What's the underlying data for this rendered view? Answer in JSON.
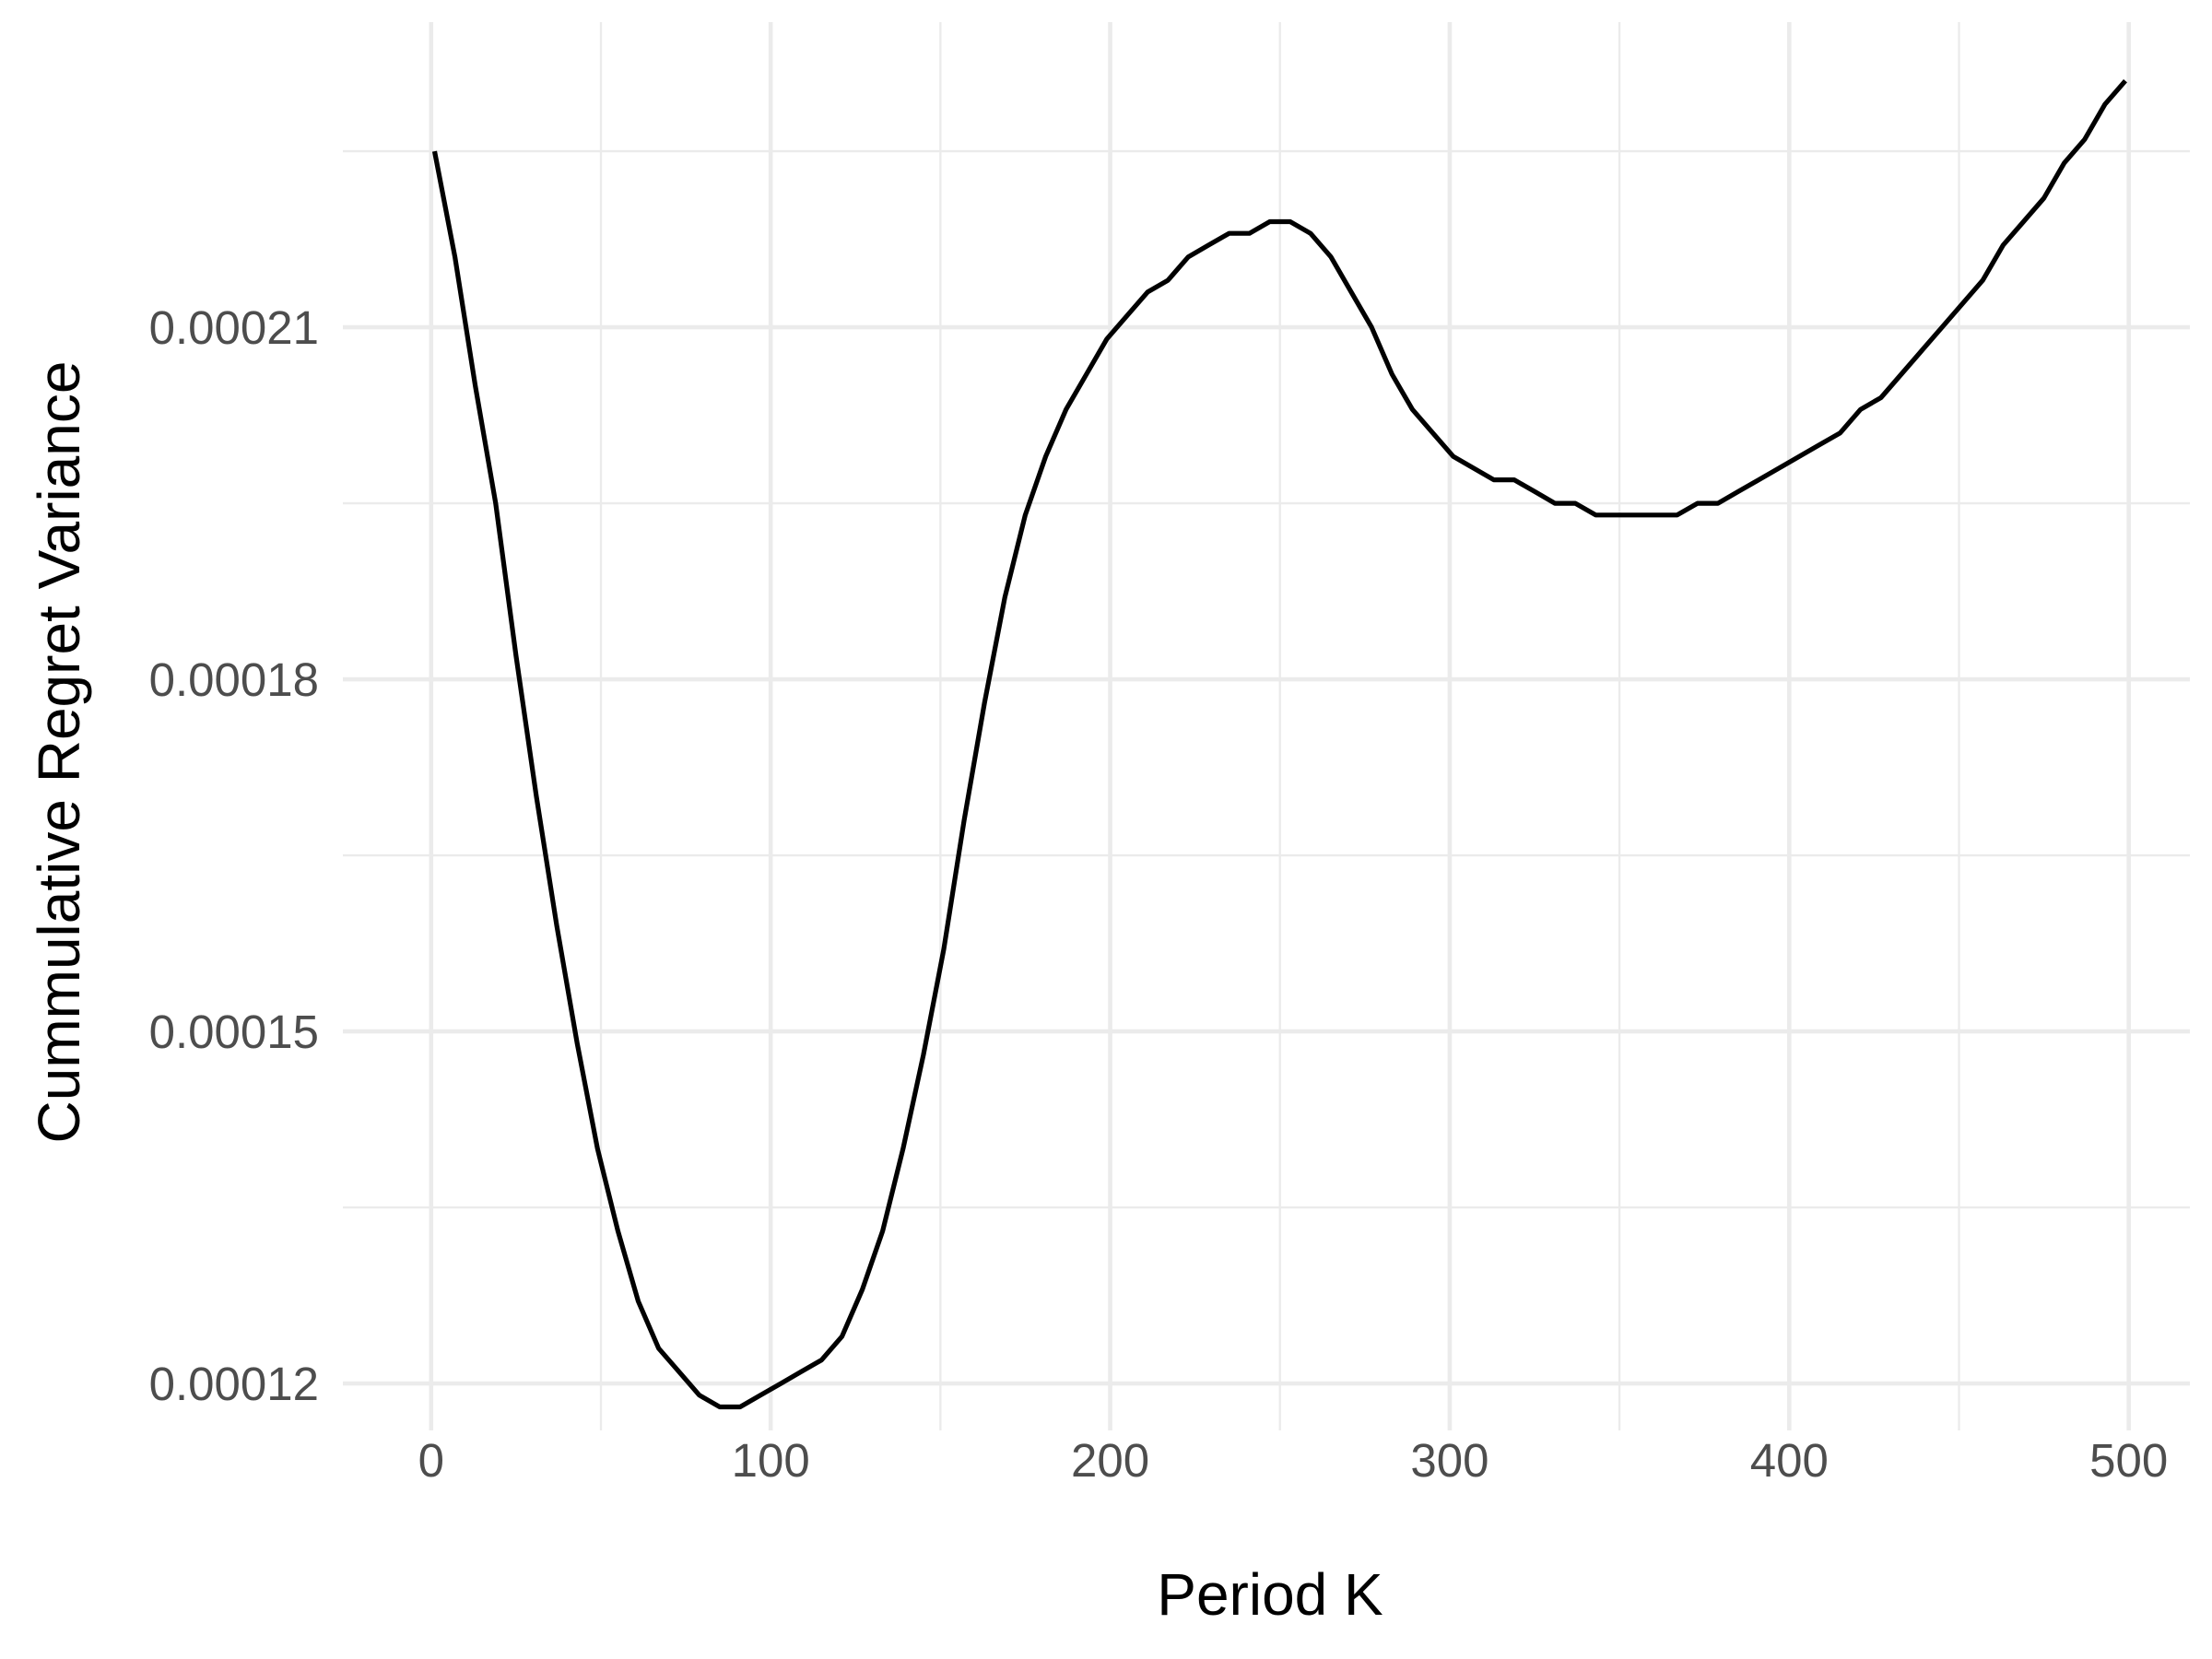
{
  "chart_data": {
    "type": "line",
    "title": "",
    "xlabel": "Period K",
    "ylabel": "Cummulative Regret Variance",
    "xlim": [
      -26,
      518
    ],
    "ylim": [
      0.000116,
      0.000236
    ],
    "x_ticks": [
      0,
      100,
      200,
      300,
      400,
      500
    ],
    "x_tick_labels": [
      "0",
      "100",
      "200",
      "300",
      "400",
      "500"
    ],
    "x_minor_ticks": [
      50,
      150,
      250,
      350,
      450
    ],
    "y_ticks": [
      0.00012,
      0.00015,
      0.00018,
      0.00021
    ],
    "y_tick_labels": [
      "0.00012",
      "0.00015",
      "0.00018",
      "0.00021"
    ],
    "y_minor_ticks": [
      0.000135,
      0.000165,
      0.000195,
      0.000225
    ],
    "grid": true,
    "legend": "none",
    "series": [
      {
        "color": "#000000",
        "x": [
          1,
          7,
          13,
          19,
          25,
          31,
          37,
          43,
          49,
          55,
          61,
          67,
          73,
          79,
          85,
          91,
          97,
          103,
          109,
          115,
          121,
          127,
          133,
          139,
          145,
          151,
          157,
          163,
          169,
          175,
          181,
          187,
          193,
          199,
          205,
          211,
          217,
          223,
          229,
          235,
          241,
          247,
          253,
          259,
          265,
          271,
          277,
          283,
          289,
          295,
          301,
          307,
          313,
          319,
          325,
          331,
          337,
          343,
          349,
          355,
          361,
          367,
          373,
          379,
          385,
          391,
          397,
          403,
          409,
          415,
          421,
          427,
          433,
          439,
          445,
          451,
          457,
          463,
          469,
          475,
          481,
          487,
          493,
          499
        ],
        "y": [
          0.000225,
          0.000216,
          0.000205,
          0.000195,
          0.000182,
          0.00017,
          0.000159,
          0.000149,
          0.00014,
          0.000133,
          0.000127,
          0.000123,
          0.000121,
          0.000119,
          0.000118,
          0.000118,
          0.000119,
          0.00012,
          0.000121,
          0.000122,
          0.000124,
          0.000128,
          0.000133,
          0.00014,
          0.000148,
          0.000157,
          0.000168,
          0.000178,
          0.000187,
          0.000194,
          0.000199,
          0.000203,
          0.000206,
          0.000209,
          0.000211,
          0.000213,
          0.000214,
          0.000216,
          0.000217,
          0.000218,
          0.000218,
          0.000219,
          0.000219,
          0.000218,
          0.000216,
          0.000213,
          0.00021,
          0.000206,
          0.000203,
          0.000201,
          0.000199,
          0.000198,
          0.000197,
          0.000197,
          0.000196,
          0.000195,
          0.000195,
          0.000194,
          0.000194,
          0.000194,
          0.000194,
          0.000194,
          0.000195,
          0.000195,
          0.000196,
          0.000197,
          0.000198,
          0.000199,
          0.0002,
          0.000201,
          0.000203,
          0.000204,
          0.000206,
          0.000208,
          0.00021,
          0.000212,
          0.000214,
          0.000217,
          0.000219,
          0.000221,
          0.000224,
          0.000226,
          0.000229,
          0.000231
        ]
      }
    ]
  }
}
